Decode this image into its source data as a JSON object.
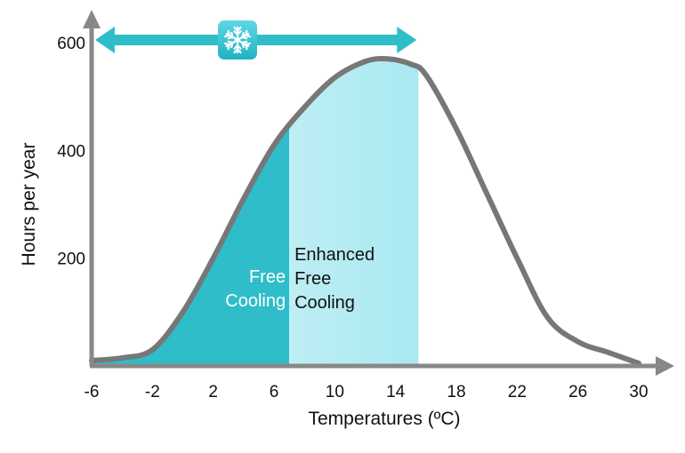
{
  "chart_data": {
    "type": "area",
    "title": "",
    "xlabel": "Temperatures (ºC)",
    "ylabel": "Hours per year",
    "x_ticks": [
      "-6",
      "-2",
      "2",
      "6",
      "10",
      "14",
      "18",
      "22",
      "26",
      "30"
    ],
    "y_ticks": [
      "200",
      "400",
      "600"
    ],
    "xlim": [
      -6,
      30
    ],
    "ylim": [
      0,
      600
    ],
    "grid": false,
    "series": [
      {
        "x": [
          -6,
          -4,
          -2,
          0,
          2,
          4,
          6,
          8,
          10,
          12,
          13.5,
          15,
          16,
          18,
          20,
          22,
          24,
          26,
          28,
          30
        ],
        "y": [
          10,
          15,
          30,
          100,
          200,
          310,
          410,
          480,
          535,
          565,
          570,
          560,
          540,
          440,
          320,
          200,
          90,
          45,
          25,
          5
        ]
      }
    ],
    "regions": [
      {
        "label": [
          "Free",
          "Cooling"
        ],
        "x_range": [
          -6,
          7
        ],
        "color": "#2ebdc9",
        "text_color": "#ffffff"
      },
      {
        "label": [
          "Enhanced",
          "Free",
          "Cooling"
        ],
        "x_range": [
          7,
          15.5
        ],
        "color_from": "#ddf5f8",
        "color_to": "#86e1ec",
        "text_color": "#111111"
      }
    ],
    "range_arrow": {
      "x_range": [
        -6,
        15.5
      ],
      "icon": "snowflake-icon",
      "color": "#2ebdc9"
    },
    "line_color": "#777777",
    "axis_color": "#888888"
  }
}
